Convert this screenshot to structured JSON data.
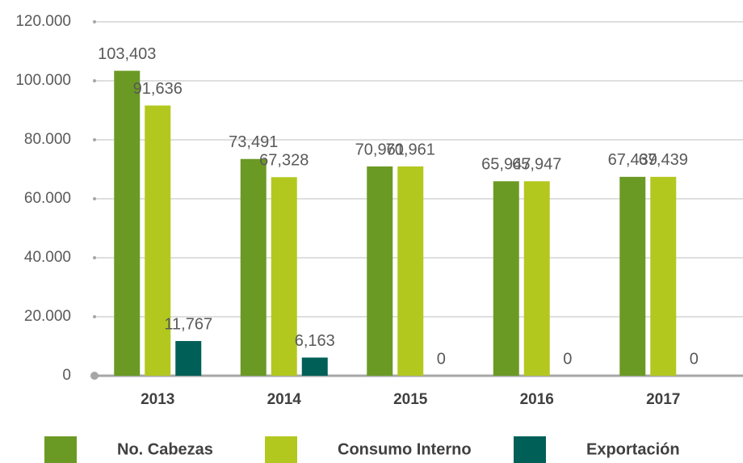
{
  "chart_data": {
    "type": "bar",
    "categories": [
      "2013",
      "2014",
      "2015",
      "2016",
      "2017"
    ],
    "series": [
      {
        "name": "No. Cabezas",
        "color": "#6b9a24",
        "values": [
          103403,
          73491,
          70961,
          65947,
          67439
        ],
        "value_labels": [
          "103,403",
          "73,491",
          "70,961",
          "65,947",
          "67,439"
        ]
      },
      {
        "name": "Consumo Interno",
        "color": "#b3c81f",
        "values": [
          91636,
          67328,
          70961,
          65947,
          67439
        ],
        "value_labels": [
          "91,636",
          "67,328",
          "70,961",
          "65,947",
          "67,439"
        ]
      },
      {
        "name": "Exportación",
        "color": "#005f57",
        "values": [
          11767,
          6163,
          0,
          0,
          0
        ],
        "value_labels": [
          "11,767",
          "6,163",
          "0",
          "0",
          "0"
        ]
      }
    ],
    "ylim": [
      0,
      120000
    ],
    "yticks": [
      0,
      {
        "value": 20000,
        "label": "20.000"
      },
      {
        "value": 40000,
        "label": "40.000"
      },
      {
        "value": 60000,
        "label": "60.000"
      },
      {
        "value": 80000,
        "label": "80.000"
      },
      {
        "value": 100000,
        "label": "100.000"
      },
      {
        "value": 120000,
        "label": "120.000"
      }
    ],
    "grid": true,
    "legend": "bottom"
  }
}
